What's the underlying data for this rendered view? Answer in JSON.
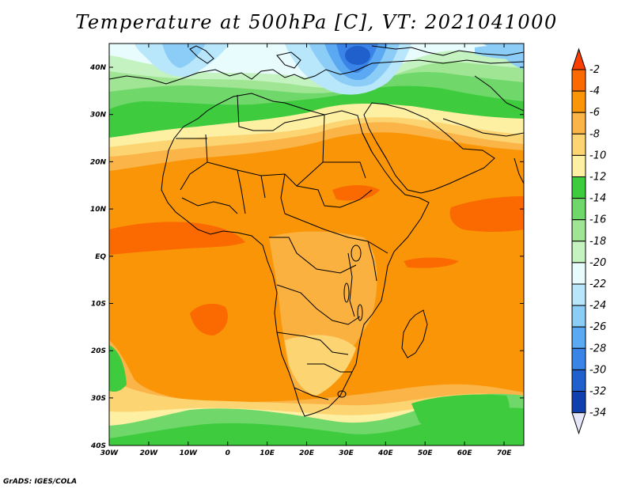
{
  "title": "Temperature at 500hPa [C], VT: 2021041000",
  "credit": "GrADS: IGES/COLA",
  "lon_ticks": [
    "30W",
    "20W",
    "10W",
    "0",
    "10E",
    "20E",
    "30E",
    "40E",
    "50E",
    "60E",
    "70E"
  ],
  "lat_ticks": [
    "40N",
    "30N",
    "20N",
    "10N",
    "EQ",
    "10S",
    "20S",
    "30S",
    "40S"
  ],
  "colorbar": {
    "labels": [
      "-2",
      "-4",
      "-6",
      "-8",
      "-10",
      "-12",
      "-14",
      "-16",
      "-18",
      "-20",
      "-22",
      "-24",
      "-26",
      "-28",
      "-30",
      "-32",
      "-34"
    ],
    "colors": [
      "#fb3f00",
      "#fa6a00",
      "#f99506",
      "#fab447",
      "#fcd471",
      "#fdf0a3",
      "#3ecb3e",
      "#70d86b",
      "#a0e594",
      "#c4f2c0",
      "#e8fbfd",
      "#b8e6fb",
      "#8ccdf7",
      "#5aa9f2",
      "#3984e6",
      "#2060cc",
      "#0f40ad",
      "#0a1c70"
    ]
  }
}
